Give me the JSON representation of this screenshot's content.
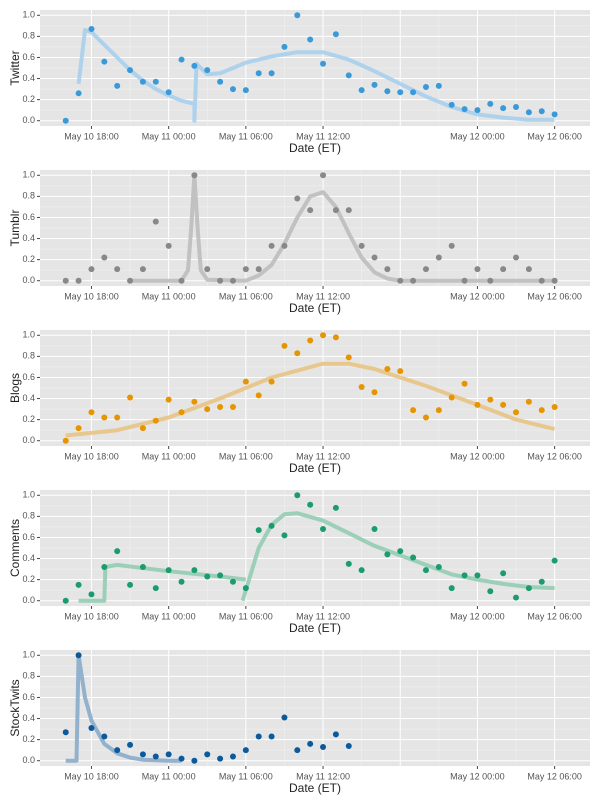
{
  "chart_data": [
    {
      "type": "scatter",
      "ylabel": "Twitter",
      "xlabel": "Date (ET)",
      "color": "#3a9ad9",
      "fit_color": "#a9cfec",
      "xlim": [
        "May 10 14:00",
        "May 12 08:45"
      ],
      "ylim": [
        -0.05,
        1.05
      ],
      "xticks": [
        "May 10 18:00",
        "May 11 00:00",
        "May 11 06:00",
        "May 11 12:00",
        "May 12 00:00",
        "May 12 06:00"
      ],
      "yticks": [
        {
          "value": 0,
          "label": "0.0"
        },
        {
          "value": 0.2,
          "label": "0.2"
        },
        {
          "value": 0.4,
          "label": "0.4"
        },
        {
          "value": 0.6,
          "label": "0.6"
        },
        {
          "value": 0.8,
          "label": "0.8"
        },
        {
          "value": 1,
          "label": "1.0"
        }
      ],
      "grid": true,
      "x": [
        "May 10 16:00",
        "May 10 17:00",
        "May 10 18:00",
        "May 10 19:00",
        "May 10 20:00",
        "May 10 21:00",
        "May 10 22:00",
        "May 10 23:00",
        "May 11 00:00",
        "May 11 01:00",
        "May 11 02:00",
        "May 11 03:00",
        "May 11 04:00",
        "May 11 05:00",
        "May 11 06:00",
        "May 11 07:00",
        "May 11 08:00",
        "May 11 09:00",
        "May 11 10:00",
        "May 11 11:00",
        "May 11 12:00",
        "May 11 13:00",
        "May 11 14:00",
        "May 11 15:00",
        "May 11 16:00",
        "May 11 17:00",
        "May 11 18:00",
        "May 11 19:00",
        "May 11 20:00",
        "May 11 21:00",
        "May 11 22:00",
        "May 11 23:00",
        "May 12 00:00",
        "May 12 01:00",
        "May 12 02:00",
        "May 12 03:00",
        "May 12 04:00",
        "May 12 05:00",
        "May 12 06:00"
      ],
      "values": [
        0.0,
        0.26,
        0.87,
        0.56,
        0.33,
        0.48,
        0.37,
        0.37,
        0.27,
        0.58,
        0.52,
        0.48,
        0.37,
        0.3,
        0.29,
        0.45,
        0.45,
        0.7,
        1.0,
        0.77,
        0.54,
        0.82,
        0.43,
        0.29,
        0.34,
        0.28,
        0.27,
        0.27,
        0.32,
        0.33,
        0.15,
        0.11,
        0.1,
        0.16,
        0.12,
        0.13,
        0.08,
        0.09,
        0.06
      ],
      "fit": {
        "x": [
          "May 10 17:00",
          "May 10 17:30",
          "May 10 18:00",
          "May 10 19:00",
          "May 10 20:00",
          "May 10 21:00",
          "May 10 22:00",
          "May 10 23:00",
          "May 11 00:00",
          "May 11 01:00",
          "May 11 02:00",
          "May 11 02:00",
          "May 11 02:10",
          "May 11 03:00",
          "May 11 04:00",
          "May 11 05:00",
          "May 11 06:00",
          "May 11 08:00",
          "May 11 10:00",
          "May 11 12:00",
          "May 11 14:00",
          "May 11 16:00",
          "May 11 18:00",
          "May 11 20:00",
          "May 11 22:00",
          "May 12 00:00",
          "May 12 02:00",
          "May 12 04:00",
          "May 12 06:00"
        ],
        "values": [
          0.35,
          0.86,
          0.84,
          0.72,
          0.6,
          0.48,
          0.38,
          0.3,
          0.24,
          0.19,
          0.16,
          0.0,
          0.54,
          0.44,
          0.45,
          0.5,
          0.55,
          0.61,
          0.65,
          0.65,
          0.58,
          0.47,
          0.35,
          0.23,
          0.13,
          0.06,
          0.03,
          0.01,
          0.01
        ]
      }
    },
    {
      "type": "scatter",
      "ylabel": "Tumblr",
      "xlabel": "Date (ET)",
      "color": "#888888",
      "fit_color": "#bdbdbd",
      "xlim": [
        "May 10 14:00",
        "May 12 08:45"
      ],
      "ylim": [
        -0.05,
        1.05
      ],
      "xticks": [
        "May 10 18:00",
        "May 11 00:00",
        "May 11 06:00",
        "May 11 12:00",
        "May 12 00:00",
        "May 12 06:00"
      ],
      "yticks": [
        {
          "value": 0,
          "label": "0.0"
        },
        {
          "value": 0.2,
          "label": "0.2"
        },
        {
          "value": 0.4,
          "label": "0.4"
        },
        {
          "value": 0.6,
          "label": "0.6"
        },
        {
          "value": 0.8,
          "label": "0.8"
        },
        {
          "value": 1,
          "label": "1.0"
        }
      ],
      "grid": true,
      "x": [
        "May 10 16:00",
        "May 10 17:00",
        "May 10 18:00",
        "May 10 19:00",
        "May 10 20:00",
        "May 10 21:00",
        "May 10 22:00",
        "May 10 23:00",
        "May 11 00:00",
        "May 11 01:00",
        "May 11 02:00",
        "May 11 03:00",
        "May 11 04:00",
        "May 11 05:00",
        "May 11 06:00",
        "May 11 07:00",
        "May 11 08:00",
        "May 11 09:00",
        "May 11 10:00",
        "May 11 11:00",
        "May 11 12:00",
        "May 11 13:00",
        "May 11 14:00",
        "May 11 15:00",
        "May 11 16:00",
        "May 11 17:00",
        "May 11 18:00",
        "May 11 19:00",
        "May 11 20:00",
        "May 11 21:00",
        "May 11 22:00",
        "May 11 23:00",
        "May 12 00:00",
        "May 12 01:00",
        "May 12 02:00",
        "May 12 03:00",
        "May 12 04:00",
        "May 12 05:00",
        "May 12 06:00"
      ],
      "values": [
        0,
        0,
        0.11,
        0.22,
        0.11,
        0,
        0.11,
        0.56,
        0.33,
        0,
        1.0,
        0.11,
        0,
        0,
        0.11,
        0.11,
        0.33,
        0.33,
        0.78,
        0.67,
        1.0,
        0.67,
        0.67,
        0.33,
        0.22,
        0.11,
        0,
        0,
        0.11,
        0.22,
        0.33,
        0,
        0.11,
        0,
        0.11,
        0.22,
        0.11,
        0,
        0
      ],
      "fit": {
        "x": [
          "May 10 21:00",
          "May 11 01:00",
          "May 11 01:30",
          "May 11 01:45",
          "May 11 02:00",
          "May 11 02:15",
          "May 11 02:30",
          "May 11 03:00",
          "May 11 06:00",
          "May 11 07:00",
          "May 11 08:00",
          "May 11 09:00",
          "May 11 10:00",
          "May 11 11:00",
          "May 11 12:00",
          "May 11 13:00",
          "May 11 14:00",
          "May 11 15:00",
          "May 11 16:00",
          "May 11 17:00",
          "May 11 18:00",
          "May 12 06:00"
        ],
        "values": [
          0,
          0,
          0.1,
          0.5,
          1.0,
          0.5,
          0.1,
          0.01,
          0,
          0.05,
          0.15,
          0.35,
          0.6,
          0.8,
          0.84,
          0.7,
          0.45,
          0.22,
          0.08,
          0.02,
          0,
          0
        ]
      }
    },
    {
      "type": "scatter",
      "ylabel": "Blogs",
      "xlabel": "Date (ET)",
      "color": "#e69500",
      "fit_color": "#e8c384",
      "xlim": [
        "May 10 14:00",
        "May 12 08:45"
      ],
      "ylim": [
        -0.05,
        1.05
      ],
      "xticks": [
        "May 10 18:00",
        "May 11 00:00",
        "May 11 06:00",
        "May 11 12:00",
        "May 12 00:00",
        "May 12 06:00"
      ],
      "yticks": [
        {
          "value": 0,
          "label": "0.0"
        },
        {
          "value": 0.2,
          "label": "0.2"
        },
        {
          "value": 0.4,
          "label": "0.4"
        },
        {
          "value": 0.6,
          "label": "0.6"
        },
        {
          "value": 0.8,
          "label": "0.8"
        },
        {
          "value": 1,
          "label": "1.0"
        }
      ],
      "grid": true,
      "x": [
        "May 10 16:00",
        "May 10 17:00",
        "May 10 18:00",
        "May 10 19:00",
        "May 10 20:00",
        "May 10 21:00",
        "May 10 22:00",
        "May 10 23:00",
        "May 11 00:00",
        "May 11 01:00",
        "May 11 02:00",
        "May 11 03:00",
        "May 11 04:00",
        "May 11 05:00",
        "May 11 06:00",
        "May 11 07:00",
        "May 11 08:00",
        "May 11 09:00",
        "May 11 10:00",
        "May 11 11:00",
        "May 11 12:00",
        "May 11 13:00",
        "May 11 14:00",
        "May 11 15:00",
        "May 11 16:00",
        "May 11 17:00",
        "May 11 18:00",
        "May 11 19:00",
        "May 11 20:00",
        "May 11 21:00",
        "May 11 22:00",
        "May 11 23:00",
        "May 12 00:00",
        "May 12 01:00",
        "May 12 02:00",
        "May 12 03:00",
        "May 12 04:00",
        "May 12 05:00",
        "May 12 06:00"
      ],
      "values": [
        0.0,
        0.12,
        0.27,
        0.22,
        0.22,
        0.41,
        0.12,
        0.19,
        0.39,
        0.27,
        0.37,
        0.3,
        0.32,
        0.32,
        0.56,
        0.43,
        0.56,
        0.9,
        0.83,
        0.95,
        1.0,
        0.98,
        0.79,
        0.51,
        0.46,
        0.68,
        0.66,
        0.29,
        0.22,
        0.29,
        0.41,
        0.54,
        0.34,
        0.39,
        0.34,
        0.27,
        0.37,
        0.29,
        0.32
      ],
      "fit": {
        "x": [
          "May 10 16:00",
          "May 10 20:00",
          "May 11 00:00",
          "May 11 04:00",
          "May 11 08:00",
          "May 11 12:00",
          "May 11 14:00",
          "May 11 16:00",
          "May 11 20:00",
          "May 12 00:00",
          "May 12 03:00",
          "May 12 06:00"
        ],
        "values": [
          0.05,
          0.1,
          0.22,
          0.4,
          0.6,
          0.73,
          0.73,
          0.68,
          0.52,
          0.34,
          0.2,
          0.11
        ]
      }
    },
    {
      "type": "scatter",
      "ylabel": "Comments",
      "xlabel": "Date (ET)",
      "color": "#1a9c6e",
      "fit_color": "#92ccb3",
      "xlim": [
        "May 10 14:00",
        "May 12 08:45"
      ],
      "ylim": [
        -0.05,
        1.05
      ],
      "xticks": [
        "May 10 18:00",
        "May 11 00:00",
        "May 11 06:00",
        "May 11 12:00",
        "May 12 00:00",
        "May 12 06:00"
      ],
      "yticks": [
        {
          "value": 0,
          "label": "0.0"
        },
        {
          "value": 0.2,
          "label": "0.2"
        },
        {
          "value": 0.4,
          "label": "0.4"
        },
        {
          "value": 0.6,
          "label": "0.6"
        },
        {
          "value": 0.8,
          "label": "0.8"
        },
        {
          "value": 1,
          "label": "1.0"
        }
      ],
      "grid": true,
      "x": [
        "May 10 16:00",
        "May 10 17:00",
        "May 10 18:00",
        "May 10 19:00",
        "May 10 20:00",
        "May 10 21:00",
        "May 10 22:00",
        "May 10 23:00",
        "May 11 00:00",
        "May 11 01:00",
        "May 11 02:00",
        "May 11 03:00",
        "May 11 04:00",
        "May 11 05:00",
        "May 11 06:00",
        "May 11 07:00",
        "May 11 08:00",
        "May 11 09:00",
        "May 11 10:00",
        "May 11 11:00",
        "May 11 12:00",
        "May 11 13:00",
        "May 11 14:00",
        "May 11 15:00",
        "May 11 16:00",
        "May 11 17:00",
        "May 11 18:00",
        "May 11 19:00",
        "May 11 20:00",
        "May 11 21:00",
        "May 11 22:00",
        "May 11 23:00",
        "May 12 00:00",
        "May 12 01:00",
        "May 12 02:00",
        "May 12 03:00",
        "May 12 04:00",
        "May 12 05:00",
        "May 12 06:00"
      ],
      "values": [
        0,
        0.15,
        0.06,
        0.32,
        0.47,
        0.15,
        0.32,
        0.12,
        0.29,
        0.18,
        0.29,
        0.23,
        0.24,
        0.18,
        0.12,
        0.67,
        0.71,
        0.62,
        1.0,
        0.91,
        0.68,
        0.88,
        0.35,
        0.29,
        0.68,
        0.44,
        0.47,
        0.41,
        0.29,
        0.32,
        0.12,
        0.24,
        0.24,
        0.09,
        0.26,
        0.03,
        0.12,
        0.18,
        0.38
      ],
      "fit": {
        "x": [
          "May 10 17:00",
          "May 10 19:00",
          "May 10 19:05",
          "May 10 20:00",
          "May 11 00:00",
          "May 11 04:00",
          "May 11 06:00",
          "May 11 06:00",
          "May 11 05:45",
          "May 11 06:00",
          "May 11 07:00",
          "May 11 08:00",
          "May 11 09:00",
          "May 11 10:00",
          "May 11 12:00",
          "May 11 14:00",
          "May 11 16:00",
          "May 11 18:00",
          "May 11 20:00",
          "May 11 22:00",
          "May 12 00:00",
          "May 12 02:00",
          "May 12 04:00",
          "May 12 06:00"
        ],
        "values": [
          0,
          0,
          0.32,
          0.34,
          0.28,
          0.23,
          0.2,
          null,
          0,
          0.1,
          0.5,
          0.72,
          0.82,
          0.83,
          0.76,
          0.64,
          0.52,
          0.43,
          0.34,
          0.25,
          0.2,
          0.16,
          0.13,
          0.12
        ]
      }
    },
    {
      "type": "scatter",
      "ylabel": "StockTwits",
      "xlabel": "Date (ET)",
      "color": "#0a5a9c",
      "fit_color": "#88abca",
      "xlim": [
        "May 10 14:00",
        "May 12 08:45"
      ],
      "ylim": [
        -0.05,
        1.05
      ],
      "xticks": [
        "May 10 18:00",
        "May 11 00:00",
        "May 11 06:00",
        "May 11 12:00",
        "May 12 00:00",
        "May 12 06:00"
      ],
      "yticks": [
        {
          "value": 0,
          "label": "0.0"
        },
        {
          "value": 0.2,
          "label": "0.2"
        },
        {
          "value": 0.4,
          "label": "0.4"
        },
        {
          "value": 0.6,
          "label": "0.6"
        },
        {
          "value": 0.8,
          "label": "0.8"
        },
        {
          "value": 1,
          "label": "1.0"
        }
      ],
      "grid": true,
      "x": [
        "May 10 16:00",
        "May 10 17:00",
        "May 10 18:00",
        "May 10 19:00",
        "May 10 20:00",
        "May 10 21:00",
        "May 10 22:00",
        "May 10 23:00",
        "May 11 00:00",
        "May 11 01:00",
        "May 11 02:00",
        "May 11 03:00",
        "May 11 04:00",
        "May 11 05:00",
        "May 11 06:00",
        "May 11 07:00",
        "May 11 08:00",
        "May 11 09:00",
        "May 11 10:00",
        "May 11 11:00",
        "May 11 12:00",
        "May 11 13:00",
        "May 11 14:00"
      ],
      "values": [
        0.27,
        1.0,
        0.31,
        0.23,
        0.1,
        0.15,
        0.06,
        0.04,
        0.06,
        0.02,
        0.0,
        0.06,
        0.02,
        0.04,
        0.1,
        0.23,
        0.23,
        0.41,
        0.1,
        0.16,
        0.13,
        0.25,
        0.14
      ],
      "fit": {
        "x": [
          "May 10 16:00",
          "May 10 16:50",
          "May 10 17:00",
          "May 10 17:30",
          "May 10 18:00",
          "May 10 19:00",
          "May 10 20:00",
          "May 10 21:00",
          "May 10 22:00",
          "May 11 00:00",
          "May 11 01:00"
        ],
        "values": [
          0,
          0,
          1.0,
          0.6,
          0.38,
          0.16,
          0.07,
          0.03,
          0.01,
          0,
          0
        ]
      }
    }
  ]
}
